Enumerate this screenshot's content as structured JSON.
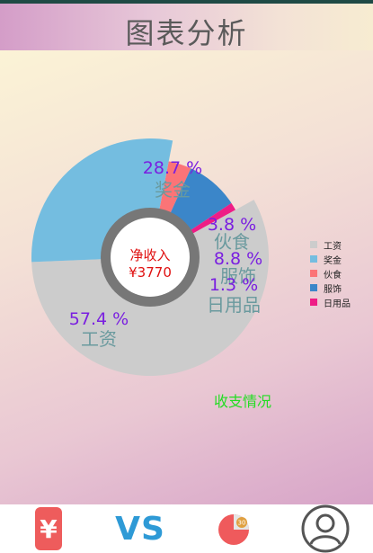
{
  "header": {
    "title": "图表分析"
  },
  "chart_data": {
    "type": "pie",
    "categories": [
      "工资",
      "奖金",
      "伙食",
      "服饰",
      "日用品"
    ],
    "values": [
      57.4,
      28.7,
      3.8,
      8.8,
      1.3
    ],
    "value_labels": [
      "57.4 %",
      "28.7 %",
      "3.8 %",
      "8.8 %",
      "1.3 %"
    ],
    "colors": [
      "#cccccc",
      "#74bde0",
      "#fb7477",
      "#3b86c9",
      "#ee1d86"
    ],
    "legend_position": "right",
    "center": {
      "label": "净收入",
      "value": "¥3770"
    },
    "description": "收支情况"
  },
  "colors": {
    "value_label": "#7a1fe0",
    "category_label": "#6a9a9e",
    "center_text": "#e01010",
    "description": "#22dd22",
    "hole_ring": "#777777"
  },
  "nav": {
    "vs_label": "VS",
    "yen_symbol": "¥",
    "pie_badge": "30"
  },
  "icons": {
    "nav_account": "yen-icon",
    "nav_compare": "vs-icon",
    "nav_chart": "pie-chart-icon",
    "nav_profile": "user-icon"
  }
}
